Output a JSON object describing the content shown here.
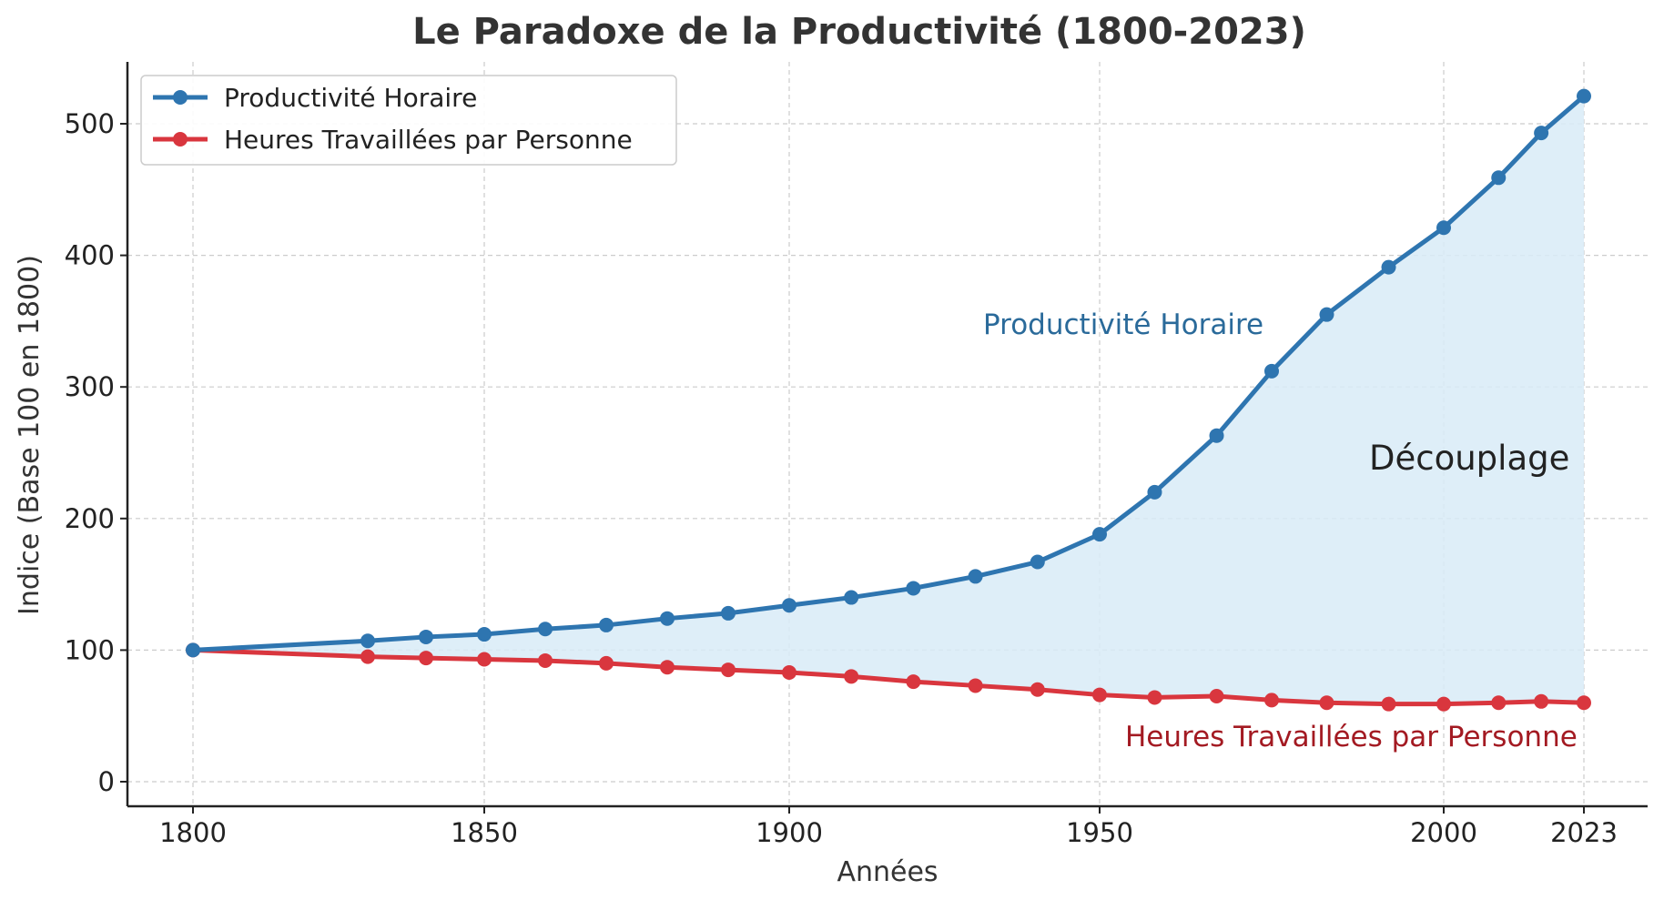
{
  "chart_data": {
    "type": "line",
    "title": "Le Paradoxe de la Productivité (1800-2023)",
    "xlabel": "Années",
    "ylabel": "Indice (Base 100 en 1800)",
    "xticks": [
      1800,
      1850,
      1900,
      1950,
      2000,
      2023
    ],
    "yticks": [
      0,
      100,
      200,
      300,
      400,
      500
    ],
    "xlim": [
      1789,
      2033
    ],
    "ylim": [
      -20,
      545
    ],
    "grid": true,
    "legend_position": "top-left",
    "fill_between": true,
    "colors": {
      "productivity": "#2e75b0",
      "hours": "#d9363e",
      "fill": "#d8ebf7",
      "productivity_label": "#2a6a9a",
      "hours_label": "#a31a22"
    },
    "series": [
      {
        "name": "Productivité Horaire",
        "x": [
          1800,
          1830,
          1840,
          1850,
          1860,
          1870,
          1880,
          1890,
          1900,
          1910,
          1920,
          1930,
          1940,
          1950,
          1958,
          1967,
          1975,
          1983,
          1992,
          2000,
          2009,
          2016,
          2023
        ],
        "y": [
          100,
          107,
          110,
          112,
          116,
          119,
          124,
          128,
          134,
          140,
          147,
          156,
          167,
          188,
          220,
          263,
          312,
          355,
          391,
          421,
          459,
          493,
          521
        ]
      },
      {
        "name": "Heures Travaillées par Personne",
        "x": [
          1800,
          1830,
          1840,
          1850,
          1860,
          1870,
          1880,
          1890,
          1900,
          1910,
          1920,
          1930,
          1940,
          1950,
          1958,
          1967,
          1975,
          1983,
          1992,
          2000,
          2009,
          2016,
          2023
        ],
        "y": [
          100,
          95,
          94,
          93,
          92,
          90,
          87,
          85,
          83,
          80,
          76,
          73,
          70,
          66,
          64,
          65,
          62,
          60,
          59,
          59,
          60,
          61,
          60
        ]
      }
    ],
    "annotations": [
      {
        "text": "Productivité Horaire",
        "series": 0
      },
      {
        "text": "Découplage",
        "series": -1
      },
      {
        "text": "Heures Travaillées par Personne",
        "series": 1
      }
    ]
  }
}
